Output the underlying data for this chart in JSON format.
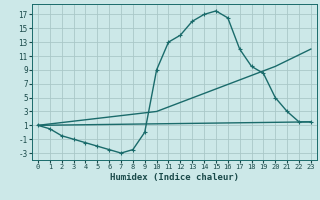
{
  "xlabel": "Humidex (Indice chaleur)",
  "xlim": [
    -0.5,
    23.5
  ],
  "ylim": [
    -4,
    18.5
  ],
  "yticks": [
    -3,
    -1,
    1,
    3,
    5,
    7,
    9,
    11,
    13,
    15,
    17
  ],
  "xticks": [
    0,
    1,
    2,
    3,
    4,
    5,
    6,
    7,
    8,
    9,
    10,
    11,
    12,
    13,
    14,
    15,
    16,
    17,
    18,
    19,
    20,
    21,
    22,
    23
  ],
  "background_color": "#cce8e8",
  "grid_color": "#aac8c8",
  "line_color": "#1a6b6b",
  "line1_x": [
    0,
    1,
    2,
    3,
    4,
    5,
    6,
    7,
    8,
    9,
    10,
    11,
    12,
    13,
    14,
    15,
    16,
    17,
    18,
    19,
    20,
    21,
    22,
    23
  ],
  "line1_y": [
    1,
    0.5,
    -0.5,
    -1,
    -1.5,
    -2,
    -2.5,
    -3,
    -2.5,
    0,
    9,
    13,
    14,
    16,
    17,
    17.5,
    16.5,
    12,
    9.5,
    8.5,
    5,
    3,
    1.5,
    1.5
  ],
  "line2_x": [
    0,
    23
  ],
  "line2_y": [
    1,
    1.5
  ],
  "line3_x": [
    0,
    10,
    20,
    23
  ],
  "line3_y": [
    1,
    3.0,
    9.5,
    12
  ],
  "marker": "+",
  "markersize": 3,
  "linewidth": 1.0
}
